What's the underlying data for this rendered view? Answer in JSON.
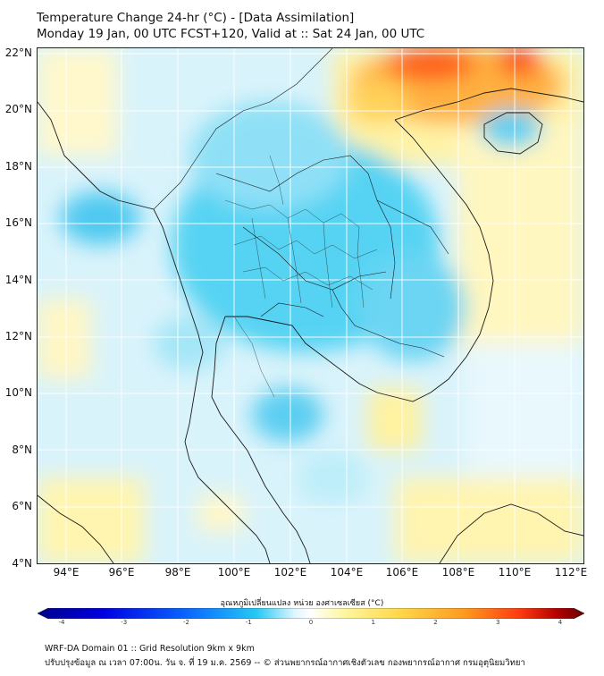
{
  "header": {
    "title": "Temperature Change 24-hr (°C) - [Data Assimilation]",
    "subtitle": "Monday 19 Jan, 00 UTC FCST+120, Valid at :: Sat 24 Jan, 00 UTC"
  },
  "map": {
    "lat_labels": [
      "22°N",
      "20°N",
      "18°N",
      "16°N",
      "14°N",
      "12°N",
      "10°N",
      "8°N",
      "6°N",
      "4°N"
    ],
    "lon_labels": [
      "94°E",
      "96°E",
      "98°E",
      "100°E",
      "102°E",
      "104°E",
      "106°E",
      "108°E",
      "110°E",
      "112°E"
    ],
    "extent": {
      "lon": [
        93,
        112.5
      ],
      "lat": [
        4,
        22.3
      ]
    }
  },
  "colorbar": {
    "title": "อุณหภูมิเปลี่ยนแปลง หน่วย องศาเซลเซียส (°C)",
    "ticks": [
      "-4",
      "-3",
      "-2",
      "-1",
      "0",
      "1",
      "2",
      "3",
      "4"
    ],
    "range": [
      -4,
      4
    ],
    "colors": [
      "#00008b",
      "#0000e0",
      "#0a6cff",
      "#25c8f5",
      "#dff6ff",
      "#ffffff",
      "#fff6a0",
      "#ffd84a",
      "#ff9a1e",
      "#ff3c10",
      "#b40000",
      "#640000"
    ]
  },
  "footer": {
    "line1": "WRF-DA Domain 01 :: Grid Resolution 9km x 9km",
    "line2": "ปรับปรุงข้อมูล ณ เวลา 07:00น. วัน จ. ที่ 19 ม.ค. 2569 -- © ส่วนพยากรณ์อากาศเชิงตัวเลข กองพยากรณ์อากาศ กรมอุตุนิยมวิทยา"
  }
}
